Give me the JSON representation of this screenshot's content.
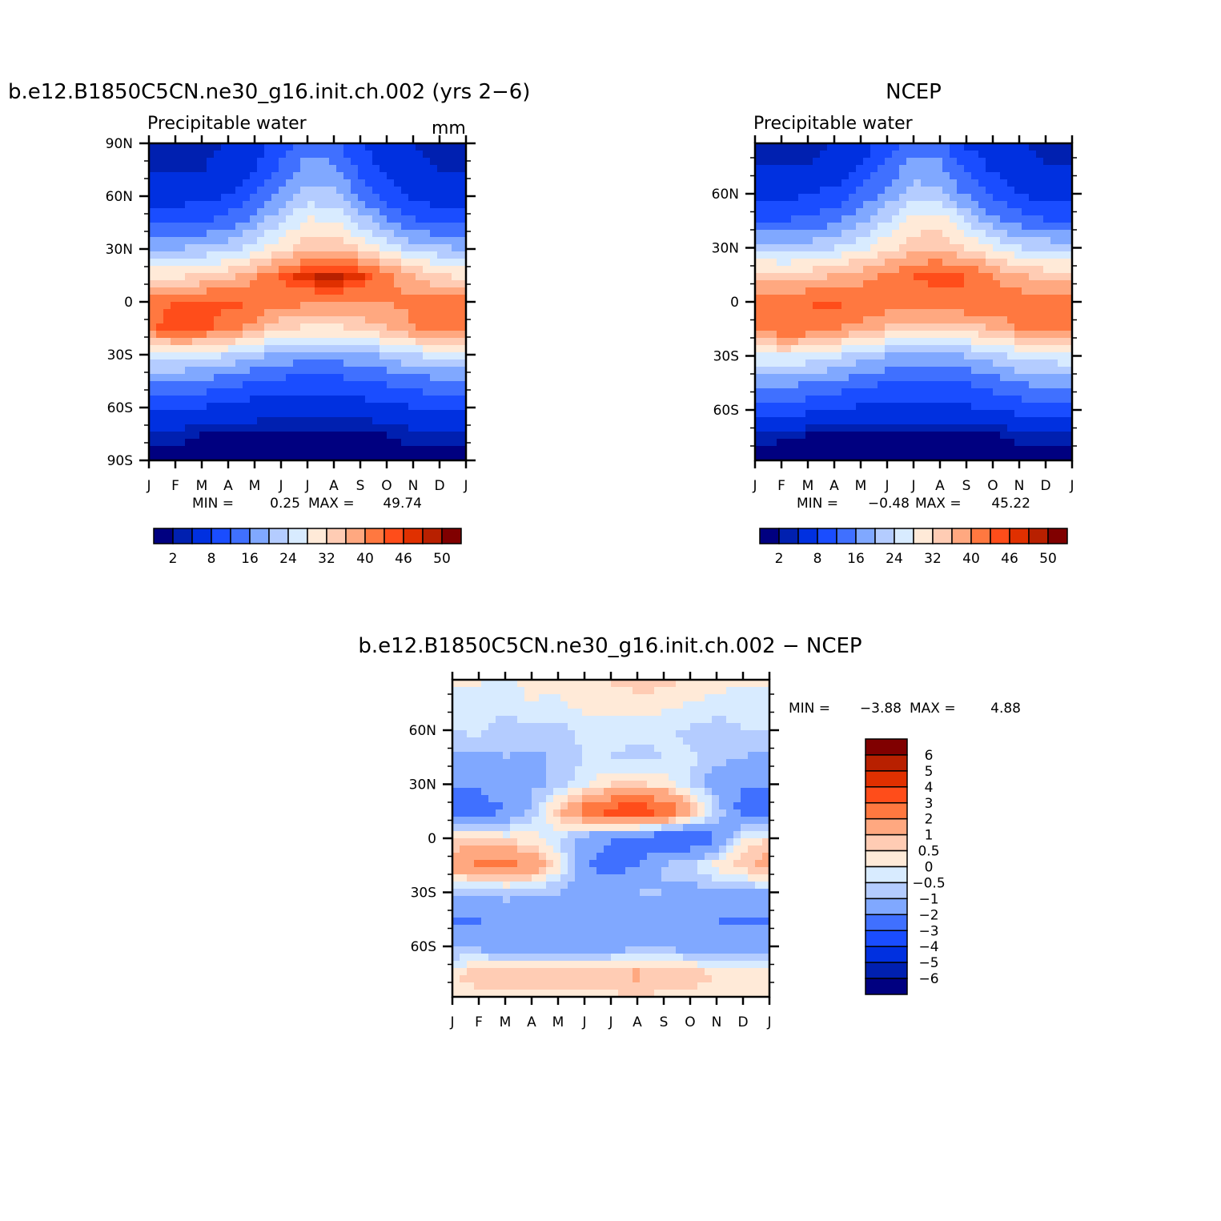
{
  "chart_data": [
    {
      "type": "heatmap",
      "title": "b.e12.B1850C5CN.ne30_g16.init.ch.002 (yrs 2−6)",
      "subtitle": "Precipitable water",
      "units": "mm",
      "x_tick_labels": [
        "J",
        "F",
        "M",
        "A",
        "M",
        "J",
        "J",
        "A",
        "S",
        "O",
        "N",
        "D",
        "J"
      ],
      "y_tick_labels": [
        "90N",
        "60N",
        "30N",
        "0",
        "30S",
        "60S",
        "90S"
      ],
      "ylim": [
        -90,
        90
      ],
      "lats": [
        90,
        75,
        60,
        45,
        30,
        15,
        0,
        -15,
        -30,
        -45,
        -60,
        -75,
        -90
      ],
      "values": [
        [
          3,
          3,
          3,
          4,
          6,
          10,
          14,
          13,
          8,
          5,
          4,
          3,
          3
        ],
        [
          4,
          4,
          4,
          5,
          8,
          13,
          18,
          17,
          11,
          7,
          5,
          4,
          4
        ],
        [
          6,
          6,
          7,
          8,
          12,
          17,
          22,
          21,
          15,
          10,
          7,
          6,
          6
        ],
        [
          11,
          11,
          12,
          14,
          18,
          24,
          29,
          29,
          23,
          17,
          13,
          11,
          11
        ],
        [
          20,
          20,
          21,
          23,
          26,
          31,
          35,
          36,
          32,
          27,
          23,
          21,
          20
        ],
        [
          31,
          31,
          32,
          35,
          39,
          44,
          48,
          49,
          47,
          42,
          36,
          32,
          31
        ],
        [
          43,
          44,
          45,
          45,
          44,
          42,
          41,
          41,
          41,
          40,
          41,
          42,
          43
        ],
        [
          43,
          46,
          45,
          42,
          38,
          33,
          31,
          31,
          33,
          36,
          40,
          42,
          43
        ],
        [
          26,
          27,
          26,
          24,
          21,
          19,
          18,
          18,
          19,
          21,
          24,
          25,
          26
        ],
        [
          16,
          16,
          15,
          14,
          12,
          11,
          10,
          11,
          11,
          13,
          14,
          15,
          16
        ],
        [
          9,
          9,
          8,
          7,
          6,
          6,
          6,
          6,
          6,
          7,
          8,
          9,
          9
        ],
        [
          3,
          3,
          2,
          2,
          2,
          1.5,
          1.5,
          1.5,
          1.5,
          2,
          3,
          3,
          3
        ],
        [
          1,
          1,
          0.8,
          0.6,
          0.5,
          0.5,
          0.5,
          0.5,
          0.5,
          0.6,
          0.8,
          1,
          1
        ]
      ],
      "min_max_text": {
        "min_label": "MIN =",
        "min": "0.25",
        "max_label": "MAX =",
        "max": "49.74"
      },
      "colorbar_labels": [
        "2",
        "8",
        "16",
        "24",
        "32",
        "40",
        "46",
        "50"
      ]
    },
    {
      "type": "heatmap",
      "title": "NCEP",
      "subtitle": "Precipitable water",
      "x_tick_labels": [
        "J",
        "F",
        "M",
        "A",
        "M",
        "J",
        "J",
        "A",
        "S",
        "O",
        "N",
        "D",
        "J"
      ],
      "y_tick_labels": [
        "60N",
        "30N",
        "0",
        "30S",
        "60S"
      ],
      "ylim": [
        -88,
        88
      ],
      "lats": [
        90,
        75,
        60,
        45,
        30,
        15,
        0,
        -15,
        -30,
        -45,
        -60,
        -75,
        -90
      ],
      "values": [
        [
          3,
          3,
          3,
          4,
          6,
          9,
          13,
          12,
          7,
          5,
          4,
          3,
          3
        ],
        [
          4,
          4,
          4,
          5,
          8,
          13,
          18,
          17,
          11,
          7,
          5,
          4,
          4
        ],
        [
          6,
          6,
          8,
          9,
          13,
          17,
          22,
          21,
          15,
          11,
          8,
          6,
          6
        ],
        [
          12,
          12,
          13,
          15,
          19,
          24,
          30,
          30,
          24,
          17,
          14,
          12,
          12
        ],
        [
          22,
          22,
          22,
          24,
          27,
          31,
          34,
          35,
          32,
          28,
          24,
          23,
          22
        ],
        [
          34,
          33,
          34,
          36,
          38,
          41,
          44,
          45,
          44,
          40,
          36,
          34,
          34
        ],
        [
          42,
          43,
          44,
          45,
          44,
          43,
          43,
          43,
          44,
          43,
          43,
          42,
          42
        ],
        [
          41,
          44,
          43,
          40,
          38,
          35,
          33,
          33,
          34,
          36,
          40,
          41,
          41
        ],
        [
          27,
          28,
          27,
          25,
          22,
          20,
          19,
          19,
          20,
          22,
          25,
          26,
          27
        ],
        [
          18,
          18,
          16,
          15,
          13,
          12,
          11,
          12,
          12,
          14,
          16,
          17,
          18
        ],
        [
          10,
          10,
          9,
          8,
          7,
          7,
          7,
          7,
          7,
          8,
          9,
          10,
          10
        ],
        [
          2.5,
          2.3,
          1.5,
          1.2,
          1.2,
          0.8,
          0.5,
          0.3,
          0.5,
          1.2,
          2.5,
          2.6,
          2.5
        ],
        [
          0.8,
          0.7,
          0.5,
          0.3,
          0.2,
          0.2,
          0.2,
          0.2,
          0.2,
          0.3,
          0.6,
          0.8,
          0.8
        ]
      ],
      "min_max_text": {
        "min_label": "MIN =",
        "min": "−0.48",
        "max_label": "MAX =",
        "max": "45.22"
      },
      "colorbar_labels": [
        "2",
        "8",
        "16",
        "24",
        "32",
        "40",
        "46",
        "50"
      ]
    },
    {
      "type": "heatmap",
      "title": "b.e12.B1850C5CN.ne30_g16.init.ch.002 − NCEP",
      "x_tick_labels": [
        "J",
        "F",
        "M",
        "A",
        "M",
        "J",
        "J",
        "A",
        "S",
        "O",
        "N",
        "D",
        "J"
      ],
      "y_tick_labels": [
        "60N",
        "30N",
        "0",
        "30S",
        "60S"
      ],
      "ylim": [
        -88,
        88
      ],
      "lats": [
        90,
        75,
        60,
        45,
        30,
        15,
        0,
        -15,
        -30,
        -45,
        -60,
        -75,
        -90
      ],
      "values": [
        [
          0.3,
          0.2,
          0,
          0.2,
          0.3,
          0.5,
          0.6,
          0.8,
          0.8,
          0.5,
          0.3,
          0.2,
          0.3
        ],
        [
          -0.3,
          -0.5,
          -0.3,
          0,
          -0.2,
          0.3,
          0.2,
          0.3,
          0.2,
          0,
          -0.2,
          -0.3,
          -0.3
        ],
        [
          -0.5,
          -0.3,
          -0.8,
          -0.6,
          -0.7,
          -0.3,
          -0.2,
          -0.3,
          -0.4,
          -0.6,
          -0.8,
          -0.5,
          -0.5
        ],
        [
          -1.2,
          -1.2,
          -1,
          -1.2,
          -0.8,
          -0.5,
          -0.5,
          -0.7,
          -0.5,
          -0.4,
          -0.8,
          -1,
          -1.2
        ],
        [
          -2,
          -1.8,
          -1.5,
          -1.2,
          -0.8,
          -0.2,
          0.5,
          0.6,
          0.3,
          -0.5,
          -1.5,
          -2,
          -2
        ],
        [
          -3.2,
          -2.5,
          -2,
          -0.8,
          0.8,
          2.5,
          3.5,
          4,
          3.2,
          1.5,
          -0.5,
          -2.5,
          -3.2
        ],
        [
          0.5,
          0.5,
          0.3,
          0.2,
          -0.5,
          -1.5,
          -2,
          -2.5,
          -3,
          -3.2,
          -2,
          0,
          0.5
        ],
        [
          1.5,
          2.2,
          2.3,
          1.8,
          0.2,
          -2,
          -2.5,
          -2,
          -1,
          -0.5,
          0.3,
          0.8,
          1.5
        ],
        [
          -1,
          -1,
          -0.8,
          -1,
          -1,
          -1.2,
          -1.2,
          -1,
          -1,
          -1.3,
          -1.3,
          -1.2,
          -1
        ],
        [
          -2.2,
          -2.1,
          -1.5,
          -1.5,
          -1.5,
          -1.5,
          -1.5,
          -1.5,
          -1.5,
          -1.5,
          -2,
          -2.2,
          -2.2
        ],
        [
          -1.2,
          -1.2,
          -1.5,
          -1.5,
          -1.5,
          -1.5,
          -1.5,
          -1.2,
          -1.2,
          -1.5,
          -1.5,
          -1.5,
          -1.2
        ],
        [
          0.5,
          0.7,
          0.8,
          0.8,
          0.8,
          0.8,
          1,
          1.2,
          1,
          0.8,
          0.5,
          0.4,
          0.5
        ],
        [
          0.2,
          0.3,
          0.3,
          0.3,
          0.3,
          0.3,
          0.3,
          0.3,
          0.3,
          0.3,
          0.2,
          0.2,
          0.2
        ]
      ],
      "min_max_text": {
        "min_label": "MIN =",
        "min": "−3.88",
        "max_label": "MAX =",
        "max": "4.88"
      },
      "colorbar_labels": [
        "6",
        "5",
        "4",
        "3",
        "2",
        "1",
        "0.5",
        "0",
        "−0.5",
        "−1",
        "−2",
        "−3",
        "−4",
        "−5",
        "−6"
      ]
    }
  ],
  "colors": {
    "palette": [
      "#000080",
      "#0020b0",
      "#0030e0",
      "#1a4dff",
      "#4070ff",
      "#80a8ff",
      "#b4ccff",
      "#d8ebff",
      "#ffead8",
      "#ffccb4",
      "#ffa880",
      "#ff7840",
      "#ff4d1a",
      "#e03000",
      "#b82000",
      "#800000"
    ]
  }
}
